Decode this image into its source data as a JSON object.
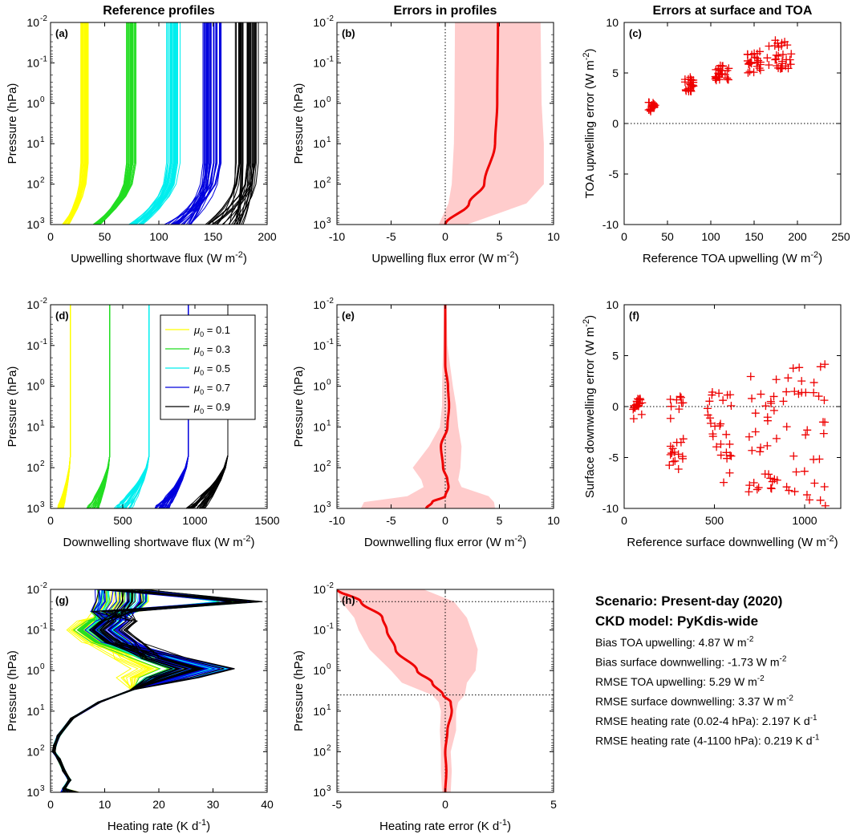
{
  "column_titles": [
    "Reference profiles",
    "Errors in profiles",
    "Errors at surface and TOA"
  ],
  "stats": {
    "scenario": "Scenario: Present-day (2020)",
    "ckd_model": "CKD model: PyKdis-wide",
    "lines": [
      {
        "label": "Bias TOA upwelling: 4.87 W m",
        "sup": "-2",
        "tail": ""
      },
      {
        "label": "Bias surface downwelling: -1.73 W m",
        "sup": "-2",
        "tail": ""
      },
      {
        "label": "RMSE TOA upwelling: 5.29 W m",
        "sup": "-2",
        "tail": ""
      },
      {
        "label": "RMSE surface downwelling: 3.37 W m",
        "sup": "-2",
        "tail": ""
      },
      {
        "label": "RMSE heating rate (0.02-4 hPa):  2.197 K d",
        "sup": "-1",
        "tail": ""
      },
      {
        "label": "RMSE heating rate (4-1100 hPa):  0.219 K d",
        "sup": "-1",
        "tail": ""
      }
    ]
  },
  "colors": {
    "mu_0.1": "#ffff00",
    "mu_0.3": "#22dd22",
    "mu_0.5": "#00eeee",
    "mu_0.7": "#0000dd",
    "mu_0.9": "#000000",
    "error_line": "#ee0000",
    "error_band": "#ffcccc"
  },
  "legend": [
    {
      "symbol": "μ",
      "sub": "0",
      "text": " = 0.1",
      "color": "#ffff00"
    },
    {
      "symbol": "μ",
      "sub": "0",
      "text": " = 0.3",
      "color": "#22dd22"
    },
    {
      "symbol": "μ",
      "sub": "0",
      "text": " = 0.5",
      "color": "#00eeee"
    },
    {
      "symbol": "μ",
      "sub": "0",
      "text": " = 0.7",
      "color": "#0000dd"
    },
    {
      "symbol": "μ",
      "sub": "0",
      "text": " = 0.9",
      "color": "#000000"
    }
  ],
  "chart_data": [
    {
      "id": "a",
      "letter": "(a)",
      "type": "line",
      "xlabel": "Upwelling shortwave flux (W m",
      "xlabel_sup": "-2",
      "xlabel_tail": ")",
      "ylabel": "Pressure (hPa)",
      "xlim": [
        0,
        200
      ],
      "xticks": [
        0,
        50,
        100,
        150,
        200
      ],
      "yscale": "log",
      "ylim": [
        0.01,
        1000
      ],
      "yreverse": true,
      "series": [
        {
          "mu0": 0.1,
          "top_range": [
            27,
            35
          ],
          "surface_range": [
            9,
            17
          ]
        },
        {
          "mu0": 0.3,
          "top_range": [
            70,
            79
          ],
          "surface_range": [
            38,
            46
          ]
        },
        {
          "mu0": 0.5,
          "top_range": [
            107,
            120
          ],
          "surface_range": [
            70,
            85
          ]
        },
        {
          "mu0": 0.7,
          "top_range": [
            140,
            158
          ],
          "surface_range": [
            100,
            130
          ]
        },
        {
          "mu0": 0.9,
          "top_range": [
            170,
            194
          ],
          "surface_range": [
            135,
            178
          ]
        }
      ]
    },
    {
      "id": "b",
      "letter": "(b)",
      "type": "line",
      "xlabel": "Upwelling flux error (W m",
      "xlabel_sup": "-2",
      "xlabel_tail": ")",
      "ylabel": "Pressure (hPa)",
      "xlim": [
        -10,
        10
      ],
      "xticks": [
        -10,
        -5,
        0,
        5,
        10
      ],
      "yscale": "log",
      "ylim": [
        0.01,
        1000
      ],
      "yreverse": true,
      "vline": 0,
      "mean": {
        "p": [
          0.01,
          1,
          10,
          100,
          300,
          1000
        ],
        "x": [
          4.87,
          4.8,
          4.6,
          3.6,
          2.2,
          0
        ]
      },
      "band": {
        "p": [
          0.01,
          1,
          10,
          100,
          300,
          1000
        ],
        "lo": [
          0.9,
          0.85,
          0.8,
          0.6,
          0.3,
          -0.6
        ],
        "hi": [
          8.8,
          8.9,
          9.1,
          9.1,
          7.5,
          2.0
        ]
      }
    },
    {
      "id": "c",
      "letter": "(c)",
      "type": "scatter",
      "xlabel": "Reference TOA upwelling (W m",
      "xlabel_sup": "-2",
      "xlabel_tail": ")",
      "ylabel": "TOA upwelling error (W m",
      "ylabel_sup": "-2",
      "ylabel_tail": ")",
      "xlim": [
        0,
        250
      ],
      "xticks": [
        0,
        50,
        100,
        150,
        200,
        250
      ],
      "ylim": [
        -10,
        10
      ],
      "yticks": [
        -10,
        -5,
        0,
        5,
        10
      ],
      "hline": 0,
      "clusters": [
        {
          "x": [
            28,
            36
          ],
          "y": [
            1.2,
            2.1
          ],
          "n": 20
        },
        {
          "x": [
            70,
            80
          ],
          "y": [
            3.1,
            4.6
          ],
          "n": 22
        },
        {
          "x": [
            105,
            122
          ],
          "y": [
            4.2,
            5.8
          ],
          "n": 26
        },
        {
          "x": [
            140,
            158
          ],
          "y": [
            5.0,
            7.2
          ],
          "n": 26
        },
        {
          "x": [
            165,
            194
          ],
          "y": [
            5.4,
            8.3
          ],
          "n": 30
        }
      ]
    },
    {
      "id": "d",
      "letter": "(d)",
      "type": "line",
      "xlabel": "Downwelling shortwave flux (W m",
      "xlabel_sup": "-2",
      "xlabel_tail": ")",
      "ylabel": "Pressure (hPa)",
      "xlim": [
        0,
        1500
      ],
      "xticks": [
        0,
        500,
        1000,
        1500
      ],
      "yscale": "log",
      "ylim": [
        0.01,
        1000
      ],
      "yreverse": true,
      "series": [
        {
          "mu0": 0.1,
          "top": 137,
          "surface_range": [
            40,
            90
          ]
        },
        {
          "mu0": 0.3,
          "top": 410,
          "surface_range": [
            240,
            330
          ]
        },
        {
          "mu0": 0.5,
          "top": 683,
          "surface_range": [
            430,
            560
          ]
        },
        {
          "mu0": 0.7,
          "top": 955,
          "surface_range": [
            700,
            810
          ]
        },
        {
          "mu0": 0.9,
          "top": 1228,
          "surface_range": [
            930,
            1060
          ]
        }
      ]
    },
    {
      "id": "e",
      "letter": "(e)",
      "type": "line",
      "xlabel": "Downwelling flux error (W m",
      "xlabel_sup": "-2",
      "xlabel_tail": ")",
      "ylabel": "Pressure (hPa)",
      "xlim": [
        -10,
        10
      ],
      "xticks": [
        -10,
        -5,
        0,
        5,
        10
      ],
      "yscale": "log",
      "ylim": [
        0.01,
        1000
      ],
      "yreverse": true,
      "vline": 0,
      "mean": {
        "p": [
          0.01,
          0.3,
          1,
          3,
          10,
          30,
          100,
          200,
          300,
          500,
          700,
          1000
        ],
        "x": [
          0,
          0,
          0.25,
          0.35,
          0.2,
          -0.4,
          -0.2,
          0.2,
          0.3,
          0,
          -1.2,
          -1.75
        ]
      },
      "band": {
        "p": [
          0.01,
          0.1,
          1,
          3,
          10,
          30,
          100,
          200,
          300,
          500,
          700,
          1000
        ],
        "lo": [
          -0.1,
          -0.2,
          -0.3,
          -0.3,
          -0.5,
          -1.5,
          -3.0,
          -2.2,
          -2.0,
          -3.5,
          -7.5,
          -7.8
        ],
        "hi": [
          0.1,
          0.2,
          0.7,
          1.0,
          1.2,
          1.5,
          1.4,
          1.2,
          1.5,
          4.0,
          4.5,
          4.6
        ]
      }
    },
    {
      "id": "f",
      "letter": "(f)",
      "type": "scatter",
      "xlabel": "Reference surface downwelling (W m",
      "xlabel_sup": "-2",
      "xlabel_tail": ")",
      "ylabel": "Surface downwelling error (W m",
      "ylabel_sup": "-2",
      "ylabel_tail": ")",
      "xlim": [
        0,
        1200
      ],
      "xticks": [
        0,
        500,
        1000
      ],
      "ylim": [
        -10,
        10
      ],
      "yticks": [
        -10,
        -5,
        0,
        5,
        10
      ],
      "hline": 0,
      "clusters": [
        {
          "x": [
            50,
            100
          ],
          "y": [
            -1.2,
            0.8
          ],
          "n": 22
        },
        {
          "x": [
            250,
            340
          ],
          "y": [
            -6.2,
            1.0
          ],
          "n": 24
        },
        {
          "x": [
            460,
            600
          ],
          "y": [
            -8.0,
            1.8
          ],
          "n": 28
        },
        {
          "x": [
            680,
            850
          ],
          "y": [
            -8.5,
            3.2
          ],
          "n": 32
        },
        {
          "x": [
            880,
            1120
          ],
          "y": [
            -9.8,
            4.3
          ],
          "n": 36
        }
      ]
    },
    {
      "id": "g",
      "letter": "(g)",
      "type": "line",
      "xlabel": "Heating rate (K d",
      "xlabel_sup": "-1",
      "xlabel_tail": ")",
      "ylabel": "Pressure (hPa)",
      "xlim": [
        0,
        40
      ],
      "xticks": [
        0,
        10,
        20,
        30,
        40
      ],
      "yscale": "log",
      "ylim": [
        0.01,
        1000
      ],
      "yreverse": true,
      "series": [
        {
          "mu0": 0.1,
          "peak_hr": [
            15,
            25
          ],
          "low_hr": [
            3,
            8
          ]
        },
        {
          "mu0": 0.3,
          "peak_hr": [
            20,
            30
          ],
          "low_hr": [
            4,
            10
          ]
        },
        {
          "mu0": 0.5,
          "peak_hr": [
            22,
            33
          ],
          "low_hr": [
            5,
            12
          ]
        },
        {
          "mu0": 0.7,
          "peak_hr": [
            23,
            34
          ],
          "low_hr": [
            6,
            13
          ]
        },
        {
          "mu0": 0.9,
          "peak_hr": [
            22,
            34
          ],
          "low_hr": [
            7,
            14
          ]
        }
      ]
    },
    {
      "id": "h",
      "letter": "(h)",
      "type": "line",
      "xlabel": "Heating rate error (K d",
      "xlabel_sup": "-1",
      "xlabel_tail": ")",
      "ylabel": "Pressure (hPa)",
      "xlim": [
        -5,
        5
      ],
      "xticks": [
        -5,
        0,
        5
      ],
      "yscale": "log",
      "ylim": [
        0.01,
        1000
      ],
      "yreverse": true,
      "vline": 0,
      "hlines": [
        0.02,
        4
      ],
      "mean": {
        "p": [
          0.01,
          0.02,
          0.05,
          0.1,
          0.3,
          1,
          2,
          4,
          6,
          10,
          30,
          100,
          300,
          1000
        ],
        "x": [
          -5,
          -3.9,
          -2.9,
          -2.7,
          -2.3,
          -1.3,
          -0.6,
          -0.1,
          0.25,
          0.3,
          0.1,
          0,
          0.05,
          0
        ]
      },
      "band": {
        "p": [
          0.01,
          0.02,
          0.05,
          0.1,
          0.3,
          1,
          2,
          4,
          6,
          10,
          30,
          100,
          300,
          1000
        ],
        "lo": [
          -5,
          -4.8,
          -4.2,
          -4.0,
          -3.5,
          -2.5,
          -2.0,
          -0.6,
          -0.3,
          -0.2,
          -0.25,
          -0.2,
          -0.2,
          -0.15
        ],
        "hi": [
          -1.0,
          0.4,
          1.0,
          1.2,
          1.5,
          1.4,
          1.0,
          0.9,
          0.6,
          0.5,
          0.5,
          0.25,
          0.3,
          0.25
        ]
      }
    }
  ]
}
